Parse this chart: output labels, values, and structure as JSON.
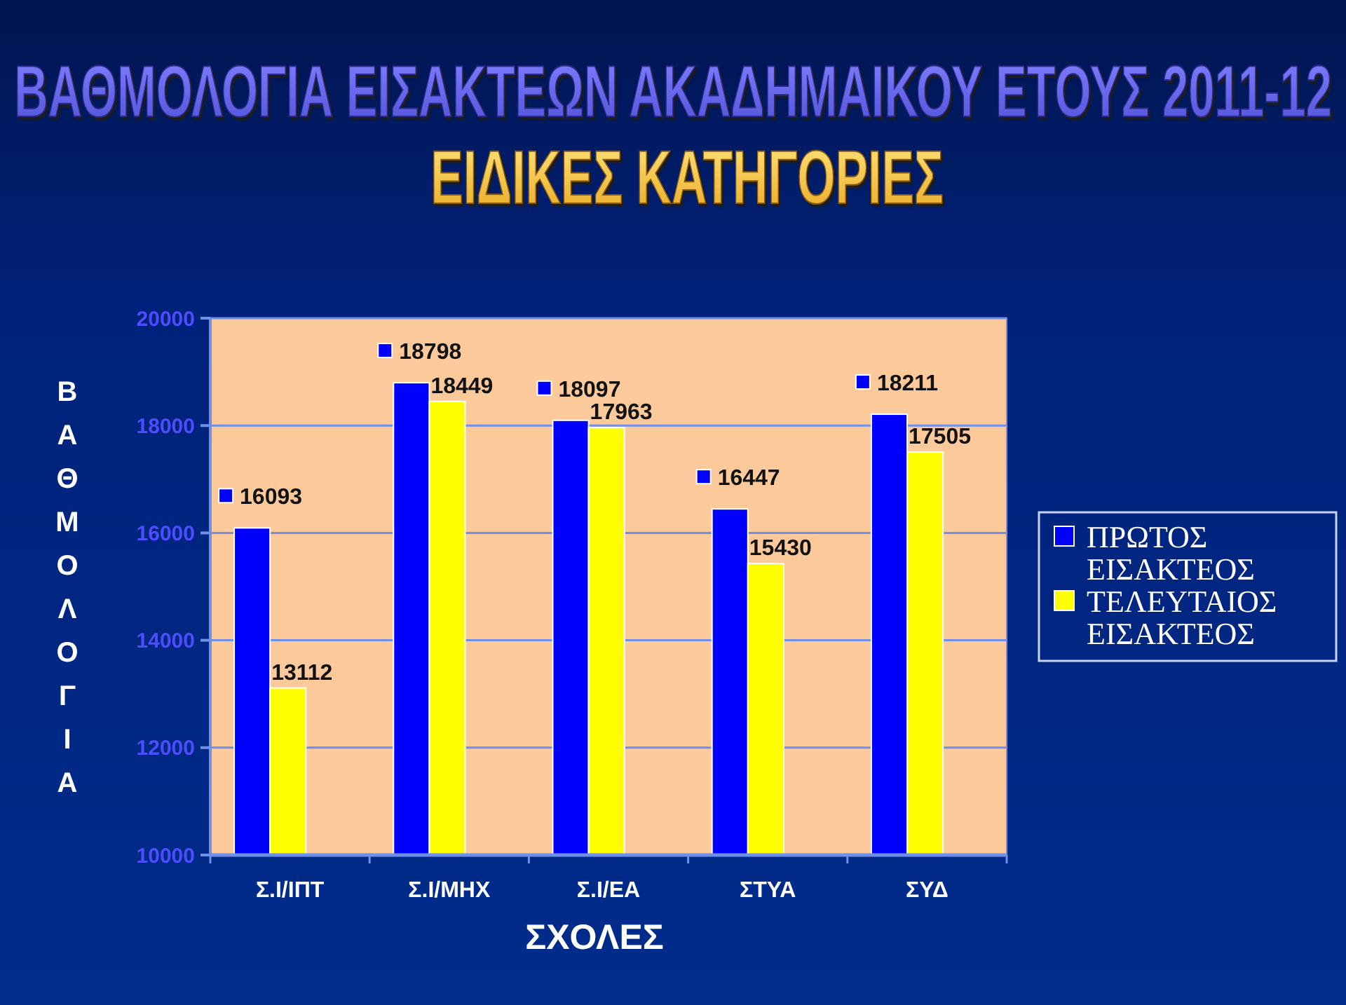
{
  "chart_data": {
    "type": "bar",
    "title": "ΒΑΘΜΟΛΟΓΙΑ ΕΙΣΑΚΤΕΩΝ ΑΚΑΔΗΜΑΙΚΟΥ ΕΤΟΥΣ 2011-12",
    "subtitle": "ΕΙΔΙΚΕΣ ΚΑΤΗΓΟΡΙΕΣ",
    "xlabel": "ΣΧΟΛΕΣ",
    "ylabel": "ΒΑΘΜΟΛΟΓΙΑ",
    "categories": [
      "Σ.Ι/ΙΠΤ",
      "Σ.Ι/ΜΗΧ",
      "Σ.Ι/ΕΑ",
      "ΣΤΥΑ",
      "ΣΥΔ"
    ],
    "series": [
      {
        "name": "ΠΡΩΤΟΣ ΕΙΣΑΚΤΕΟΣ",
        "color": "#0000ff",
        "values": [
          16093,
          18798,
          18097,
          16447,
          18211
        ]
      },
      {
        "name": "ΤΕΛΕΥΤΑΙΟΣ ΕΙΣΑΚΤΕΟΣ",
        "color": "#ffff00",
        "values": [
          13112,
          18449,
          17963,
          15430,
          17505
        ]
      }
    ],
    "ylim": [
      10000,
      20000
    ],
    "yticks": [
      10000,
      12000,
      14000,
      16000,
      18000,
      20000
    ],
    "grid": "y",
    "legend": "right",
    "data_labels": true
  }
}
